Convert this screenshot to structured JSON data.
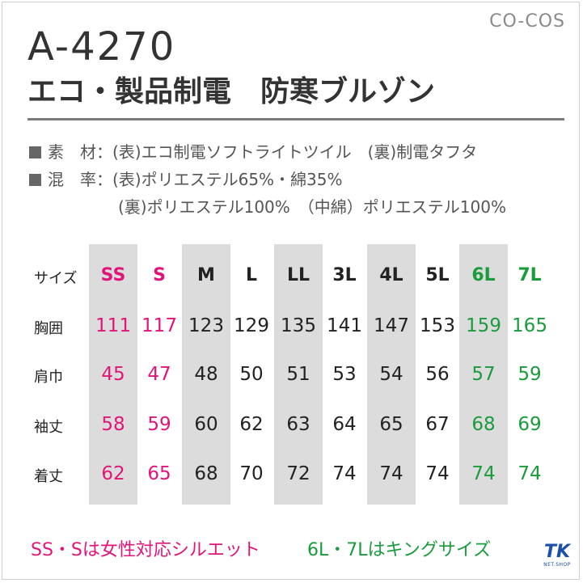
{
  "brand": "CO-COS",
  "model": "A-4270",
  "product_name": "エコ・製品制電　防寒ブルゾン",
  "specs": {
    "material": "素　材：(表)エコ制電ソフトライトツイル　(裏)制電タフタ",
    "blend": "混　率：(表)ポリエステル65%・綿35%",
    "blend2": "(裏)ポリエステル100%　（中綿）ポリエステル100%"
  },
  "size_table": {
    "header_label": "サイズ",
    "sizes": [
      "SS",
      "S",
      "M",
      "L",
      "LL",
      "3L",
      "4L",
      "5L",
      "6L",
      "7L"
    ],
    "rows": [
      {
        "label": "胸囲",
        "values": [
          "111",
          "117",
          "123",
          "129",
          "135",
          "141",
          "147",
          "153",
          "159",
          "165"
        ]
      },
      {
        "label": "肩巾",
        "values": [
          "45",
          "47",
          "48",
          "50",
          "51",
          "53",
          "54",
          "56",
          "57",
          "59"
        ]
      },
      {
        "label": "袖丈",
        "values": [
          "58",
          "59",
          "60",
          "62",
          "63",
          "64",
          "65",
          "67",
          "68",
          "69"
        ]
      },
      {
        "label": "着丈",
        "values": [
          "62",
          "65",
          "68",
          "70",
          "72",
          "74",
          "74",
          "74",
          "74",
          "74"
        ]
      }
    ]
  },
  "notes": {
    "left": "SS・Sは女性対応シルエット",
    "right": "6L・7Lはキングサイズ"
  },
  "logo": {
    "big": "TK",
    "small": "NET.SHOP"
  },
  "colors": {
    "pink": "#e0157a",
    "green": "#1a9b3c",
    "gray_column": "#dcdcdc"
  }
}
